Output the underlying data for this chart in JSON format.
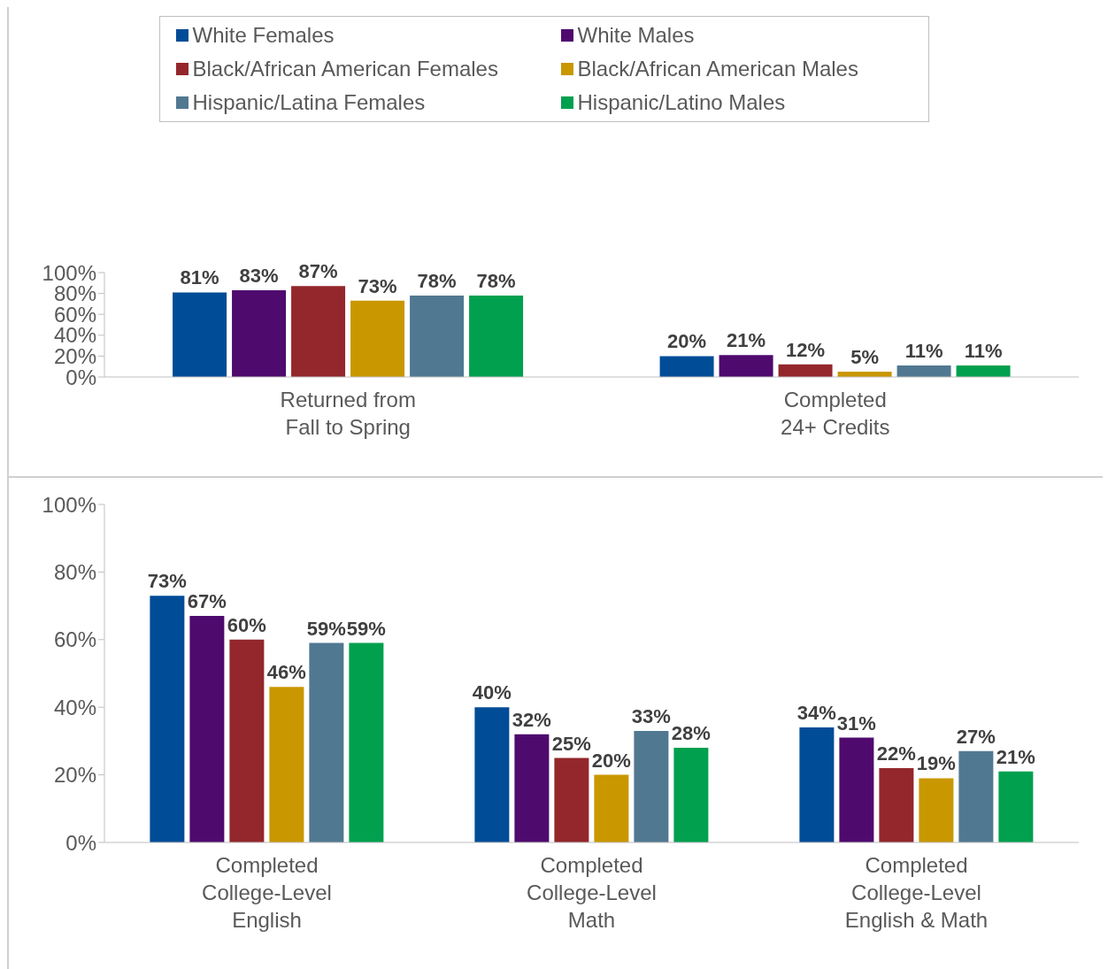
{
  "chart_data": [
    {
      "type": "bar",
      "categories": [
        "Returned from\nFall to Spring",
        "Completed\n24+ Credits"
      ],
      "ylim": [
        0,
        100
      ],
      "yticks": [
        {
          "value": 0,
          "label": "0%"
        },
        {
          "value": 20,
          "label": "20%"
        },
        {
          "value": 40,
          "label": "40%"
        },
        {
          "value": 60,
          "label": "60%"
        },
        {
          "value": 80,
          "label": "80%"
        },
        {
          "value": 100,
          "label": "100%"
        }
      ],
      "grid": false,
      "legend": "top",
      "series": [
        {
          "name": "White Females",
          "color": "#004c97",
          "values": [
            81,
            20
          ],
          "value_labels": [
            "81%",
            "20%"
          ]
        },
        {
          "name": "White Males",
          "color": "#4f0a6e",
          "values": [
            83,
            21
          ],
          "value_labels": [
            "83%",
            "21%"
          ]
        },
        {
          "name": "Black/African American Females",
          "color": "#93272c",
          "values": [
            87,
            12
          ],
          "value_labels": [
            "87%",
            "12%"
          ]
        },
        {
          "name": "Black/African American Males",
          "color": "#c99700",
          "values": [
            73,
            5
          ],
          "value_labels": [
            "73%",
            "5%"
          ]
        },
        {
          "name": "Hispanic/Latina Females",
          "color": "#517891",
          "values": [
            78,
            11
          ],
          "value_labels": [
            "78%",
            "11%"
          ]
        },
        {
          "name": "Hispanic/Latino Males",
          "color": "#00a04f",
          "values": [
            78,
            11
          ],
          "value_labels": [
            "78%",
            "11%"
          ]
        }
      ]
    },
    {
      "type": "bar",
      "categories": [
        "Completed\nCollege-Level\nEnglish",
        "Completed\nCollege-Level\nMath",
        "Completed\nCollege-Level\nEnglish & Math"
      ],
      "ylim": [
        0,
        100
      ],
      "yticks": [
        {
          "value": 0,
          "label": "0%"
        },
        {
          "value": 20,
          "label": "20%"
        },
        {
          "value": 40,
          "label": "40%"
        },
        {
          "value": 60,
          "label": "60%"
        },
        {
          "value": 80,
          "label": "80%"
        },
        {
          "value": 100,
          "label": "100%"
        }
      ],
      "grid": false,
      "series": [
        {
          "color": "#004c97",
          "values": [
            73,
            40,
            34
          ],
          "value_labels": [
            "73%",
            "40%",
            "34%"
          ]
        },
        {
          "color": "#4f0a6e",
          "values": [
            67,
            32,
            31
          ],
          "value_labels": [
            "67%",
            "32%",
            "31%"
          ]
        },
        {
          "color": "#93272c",
          "values": [
            60,
            25,
            22
          ],
          "value_labels": [
            "60%",
            "25%",
            "22%"
          ]
        },
        {
          "color": "#c99700",
          "values": [
            46,
            20,
            19
          ],
          "value_labels": [
            "46%",
            "20%",
            "19%"
          ]
        },
        {
          "color": "#517891",
          "values": [
            59,
            33,
            27
          ],
          "value_labels": [
            "59%",
            "33%",
            "27%"
          ]
        },
        {
          "color": "#00a04f",
          "values": [
            59,
            28,
            21
          ],
          "value_labels": [
            "59%",
            "28%",
            "21%"
          ]
        }
      ]
    }
  ]
}
